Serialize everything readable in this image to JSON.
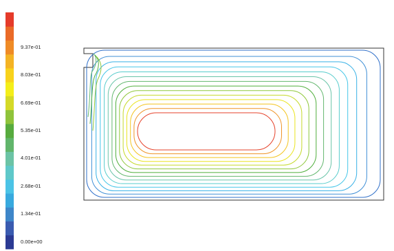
{
  "legend": {
    "colors": [
      "#2b3a93",
      "#3a5bb0",
      "#3e86c9",
      "#38a9de",
      "#4bc3e6",
      "#5fc8c9",
      "#6cc3a5",
      "#61b56b",
      "#57ab3e",
      "#8fc33b",
      "#d4d927",
      "#f4ee1a",
      "#f8d21c",
      "#f4b324",
      "#ef8b26",
      "#ea6a27",
      "#e53b2a"
    ],
    "ticks": [
      {
        "label": "9.37e-01",
        "index": 14
      },
      {
        "label": "8.03e-01",
        "index": 12
      },
      {
        "label": "6.69e-01",
        "index": 10
      },
      {
        "label": "5.35e-01",
        "index": 8
      },
      {
        "label": "4.01e-01",
        "index": 6
      },
      {
        "label": "2.68e-01",
        "index": 4
      },
      {
        "label": "1.34e-01",
        "index": 2
      },
      {
        "label": "0.00e+00",
        "index": 0
      }
    ]
  },
  "contours": {
    "levels": 14,
    "colors": [
      "#2f6fc9",
      "#3f8fd6",
      "#36b0e6",
      "#45c6e8",
      "#57cccc",
      "#69c4a8",
      "#63b76e",
      "#4fae3b",
      "#8ec73a",
      "#c5d92a",
      "#e9e41e",
      "#f3c41f",
      "#ee9326",
      "#e5422a"
    ]
  }
}
